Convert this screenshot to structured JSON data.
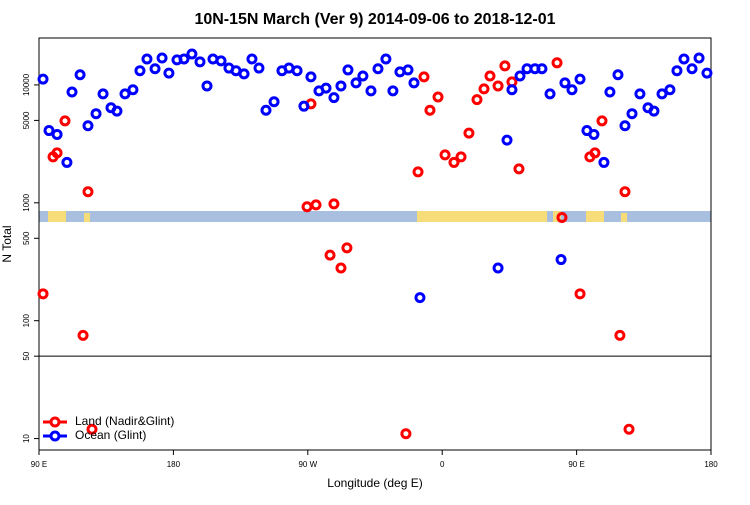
{
  "chart_data": {
    "type": "scatter",
    "title": "10N-15N March (Ver 9)   2014-09-06 to 2018-12-01",
    "x_label": "Longitude (deg E)",
    "y_label": "N Total",
    "xlim": [
      90,
      540
    ],
    "ylim": [
      8,
      25000
    ],
    "log_y": true,
    "hline": 50,
    "legend": "bottom-left",
    "xticks": [
      {
        "value": 90,
        "label": "90 E"
      },
      180,
      {
        "value": 270,
        "label": "90 W"
      },
      {
        "value": 360,
        "label": "0"
      },
      {
        "value": 450,
        "label": "90 E"
      },
      {
        "value": 540,
        "label": "180"
      }
    ],
    "yticks": [
      10,
      50,
      100,
      500,
      1000,
      5000,
      10000
    ],
    "series": [
      {
        "name": "Land (Nadir&Glint)",
        "color": "#ff0000",
        "x": [
          92.7,
          99.4,
          102.1,
          107.4,
          122.8,
          119.5,
          125.5,
          272.1,
          269.5,
          275.5,
          287.5,
          284.9,
          292.2,
          296.2,
          343.8,
          335.7,
          347.8,
          351.8,
          357.2,
          361.9,
          367.9,
          372.6,
          377.9,
          383.3,
          388.0,
          392.0,
          397.4,
          402.0,
          406.7,
          411.4,
          436.9,
          440.2,
          452.3,
          458.9,
          462.3,
          467.0,
          479.0,
          482.4,
          485.1
        ],
        "values": [
          169,
          2450,
          2650,
          4950,
          1240,
          75,
          12,
          6900,
          925,
          960,
          980,
          360,
          280,
          415,
          1830,
          11,
          11700,
          6100,
          7900,
          2550,
          2200,
          2450,
          3900,
          7500,
          9250,
          11900,
          9800,
          14500,
          10600,
          1940,
          15400,
          750,
          169,
          2450,
          2650,
          4950,
          75,
          1240,
          12
        ]
      },
      {
        "name": "Ocean (Glint)",
        "color": "#0000ff",
        "x": [
          92.7,
          96.7,
          102.1,
          108.7,
          112.1,
          117.5,
          122.8,
          128.2,
          132.9,
          138.2,
          142.2,
          147.6,
          152.9,
          157.6,
          162.3,
          167.7,
          172.4,
          177.0,
          182.4,
          187.1,
          192.4,
          197.8,
          202.5,
          206.5,
          211.9,
          217.2,
          221.9,
          227.3,
          232.6,
          237.3,
          242.0,
          247.4,
          252.7,
          257.4,
          262.8,
          267.4,
          272.1,
          277.5,
          282.2,
          287.5,
          292.2,
          296.9,
          302.3,
          306.9,
          312.3,
          317.0,
          322.3,
          327.0,
          331.7,
          337.1,
          341.1,
          345.1,
          397.4,
          403.4,
          406.7,
          412.1,
          416.8,
          422.1,
          426.8,
          432.2,
          439.6,
          442.2,
          446.9,
          452.3,
          456.9,
          461.6,
          468.3,
          472.3,
          477.7,
          482.4,
          487.1,
          492.4,
          497.8,
          501.8,
          507.2,
          512.5,
          517.2,
          521.9,
          527.3,
          532.0,
          537.3
        ],
        "values": [
          11200,
          4100,
          3800,
          2200,
          8700,
          12200,
          4500,
          5700,
          8400,
          6400,
          6000,
          8400,
          9100,
          13200,
          16600,
          13700,
          16900,
          12600,
          16300,
          16600,
          18300,
          15700,
          9800,
          16600,
          16000,
          13900,
          13200,
          12400,
          16600,
          13900,
          6100,
          7200,
          13200,
          13900,
          13200,
          6600,
          11700,
          8900,
          9400,
          7800,
          9800,
          13400,
          10400,
          11900,
          8900,
          13700,
          16600,
          8900,
          12900,
          13400,
          10400,
          157,
          280,
          3400,
          9100,
          11900,
          13700,
          13700,
          13700,
          8400,
          330,
          10400,
          9100,
          11200,
          4100,
          3800,
          2200,
          8700,
          12200,
          4500,
          5700,
          8400,
          6400,
          6000,
          8400,
          9100,
          13200,
          16600,
          13700,
          16900,
          12600
        ]
      }
    ]
  }
}
